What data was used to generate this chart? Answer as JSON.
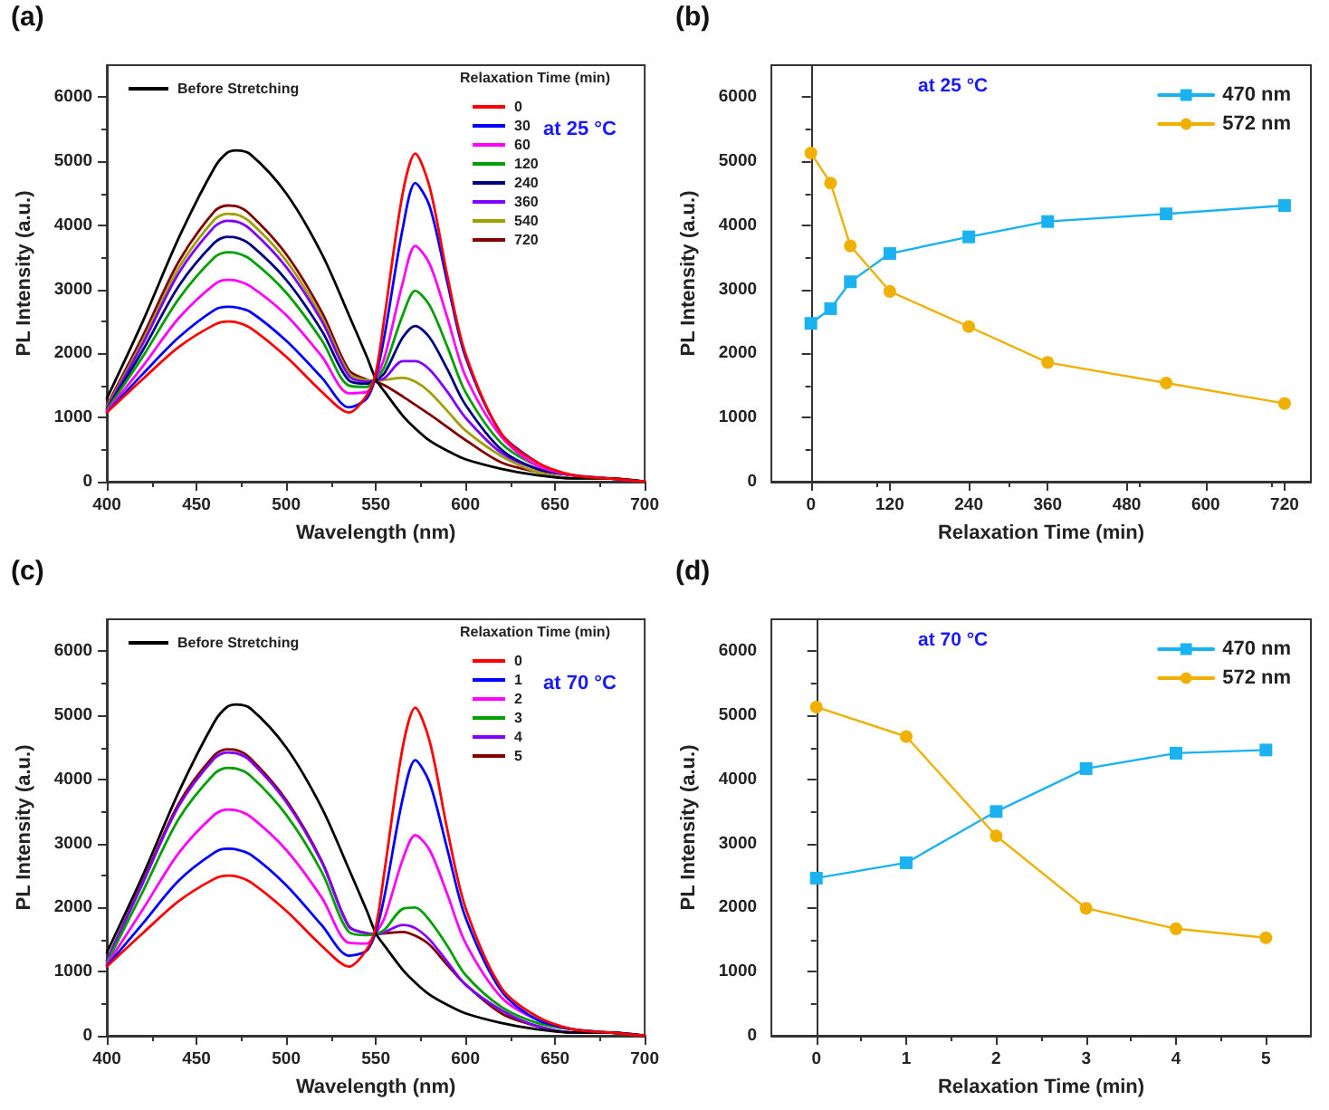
{
  "chart_data": [
    {
      "type": "line",
      "title": "(a)",
      "xlabel": "Wavelength (nm)",
      "ylabel": "PL Intensity (a.u.)",
      "legend_title": "Relaxation Time (min)",
      "annotations": [
        "at 25 °C"
      ],
      "marker": "none",
      "legend": "top",
      "xlim": [
        400,
        700
      ],
      "xticks": [
        400,
        450,
        500,
        550,
        600,
        650,
        700
      ],
      "ylim": [
        0,
        6500
      ],
      "yticks": [
        0,
        1000,
        2000,
        3000,
        4000,
        5000,
        6000
      ],
      "x": [
        400,
        420,
        440,
        460,
        467,
        472,
        480,
        500,
        520,
        535,
        545,
        550,
        555,
        565,
        572,
        580,
        590,
        600,
        620,
        640,
        660,
        680,
        700
      ],
      "series": [
        {
          "name": "Before Stretching",
          "color": "#000000",
          "values": [
            1300,
            2500,
            3800,
            4900,
            5130,
            5170,
            5110,
            4500,
            3550,
            2600,
            1950,
            1600,
            1400,
            1030,
            830,
            640,
            480,
            350,
            200,
            100,
            50,
            50,
            0
          ]
        },
        {
          "name": "0",
          "color": "#ff0000",
          "values": [
            1080,
            1600,
            2100,
            2450,
            2500,
            2490,
            2400,
            1950,
            1400,
            1080,
            1350,
            1700,
            2600,
            4500,
            5120,
            4600,
            3200,
            2000,
            750,
            300,
            100,
            50,
            0
          ]
        },
        {
          "name": "30",
          "color": "#0000ff",
          "values": [
            1080,
            1680,
            2250,
            2680,
            2730,
            2720,
            2650,
            2200,
            1620,
            1160,
            1300,
            1650,
            2300,
            3950,
            4660,
            4300,
            3100,
            1950,
            750,
            300,
            null,
            null,
            null
          ]
        },
        {
          "name": "60",
          "color": "#ff00ff",
          "values": [
            1100,
            1800,
            2550,
            3080,
            3150,
            3140,
            3050,
            2600,
            1950,
            1380,
            1400,
            1620,
            1950,
            3100,
            3680,
            3400,
            2550,
            1650,
            700,
            250,
            100,
            50,
            0
          ]
        },
        {
          "name": "120",
          "color": "#00a000",
          "values": [
            1120,
            1950,
            2850,
            3500,
            3580,
            3570,
            3470,
            2950,
            2200,
            1500,
            1480,
            1600,
            1800,
            2600,
            2980,
            2750,
            2100,
            1400,
            600,
            250,
            100,
            null,
            null
          ]
        },
        {
          "name": "240",
          "color": "#000080",
          "values": [
            1130,
            2050,
            3050,
            3730,
            3820,
            3810,
            3700,
            3150,
            2350,
            1580,
            1530,
            1590,
            1700,
            2250,
            2430,
            2250,
            1750,
            1200,
            500,
            200,
            100,
            50,
            0
          ]
        },
        {
          "name": "360",
          "color": "#8000ff",
          "values": [
            1150,
            2150,
            3250,
            3980,
            4070,
            4060,
            3940,
            3350,
            2500,
            1650,
            1560,
            1580,
            1620,
            1880,
            1880,
            1750,
            1400,
            1000,
            450,
            200,
            100,
            null,
            null
          ]
        },
        {
          "name": "540",
          "color": "#a0a000",
          "values": [
            1170,
            2200,
            3330,
            4090,
            4180,
            4170,
            4050,
            3450,
            2560,
            1690,
            1580,
            1570,
            1590,
            1620,
            1560,
            1400,
            1100,
            800,
            400,
            150,
            50,
            50,
            0
          ]
        },
        {
          "name": "720",
          "color": "#800000",
          "values": [
            1190,
            2270,
            3430,
            4220,
            4310,
            4300,
            4170,
            3550,
            2640,
            1740,
            1590,
            1560,
            1500,
            1330,
            1200,
            1050,
            850,
            650,
            300,
            150,
            50,
            50,
            0
          ]
        }
      ]
    },
    {
      "type": "line",
      "title": "(b)",
      "xlabel": "Relaxation Time (min)",
      "ylabel": "PL Intensity (a.u.)",
      "annotations": [
        "at 25 °C"
      ],
      "legend": "top right",
      "xlim": [
        -60,
        760
      ],
      "xticks": [
        0,
        120,
        240,
        360,
        480,
        600,
        720
      ],
      "ylim": [
        0,
        6500
      ],
      "yticks": [
        0,
        1000,
        2000,
        3000,
        4000,
        5000,
        6000
      ],
      "x": [
        0,
        30,
        60,
        120,
        240,
        360,
        540,
        720
      ],
      "series": [
        {
          "name": "470 nm",
          "color": "#1ab2f0",
          "marker": "square",
          "values": [
            2470,
            2700,
            3120,
            3560,
            3820,
            4060,
            4180,
            4310
          ]
        },
        {
          "name": "572 nm",
          "color": "#f0b000",
          "marker": "circle",
          "values": [
            5130,
            4660,
            3680,
            2970,
            2420,
            1860,
            1540,
            1220
          ]
        }
      ]
    },
    {
      "type": "line",
      "title": "(c)",
      "xlabel": "Wavelength (nm)",
      "ylabel": "PL Intensity (a.u.)",
      "legend_title": "Relaxation Time (min)",
      "annotations": [
        "at 70 °C"
      ],
      "marker": "none",
      "legend": "top",
      "xlim": [
        400,
        700
      ],
      "xticks": [
        400,
        450,
        500,
        550,
        600,
        650,
        700
      ],
      "ylim": [
        0,
        6500
      ],
      "yticks": [
        0,
        1000,
        2000,
        3000,
        4000,
        5000,
        6000
      ],
      "x": [
        400,
        420,
        440,
        460,
        467,
        472,
        480,
        500,
        520,
        535,
        545,
        550,
        555,
        565,
        572,
        580,
        590,
        600,
        620,
        640,
        660,
        680,
        700
      ],
      "series": [
        {
          "name": "Before Stretching",
          "color": "#000000",
          "values": [
            1300,
            2500,
            3800,
            4900,
            5130,
            5170,
            5110,
            4500,
            3550,
            2600,
            1950,
            1600,
            1400,
            1030,
            830,
            640,
            480,
            350,
            200,
            100,
            50,
            50,
            0
          ]
        },
        {
          "name": "0",
          "color": "#ff0000",
          "values": [
            1080,
            1600,
            2100,
            2450,
            2500,
            2490,
            2400,
            1950,
            1400,
            1080,
            1350,
            1700,
            2600,
            4500,
            5120,
            4600,
            3200,
            2000,
            750,
            300,
            100,
            50,
            0
          ]
        },
        {
          "name": "1",
          "color": "#0000ff",
          "values": [
            1090,
            1750,
            2420,
            2860,
            2920,
            2910,
            2830,
            2350,
            1720,
            1250,
            1330,
            1620,
            2200,
            3700,
            4300,
            3950,
            2900,
            1850,
            700,
            250,
            100,
            50,
            0
          ]
        },
        {
          "name": "2",
          "color": "#ff00ff",
          "values": [
            1110,
            1970,
            2850,
            3450,
            3530,
            3520,
            3420,
            2900,
            2150,
            1450,
            1440,
            1600,
            1850,
            2750,
            3130,
            2900,
            2200,
            1450,
            600,
            250,
            100,
            null,
            null
          ]
        },
        {
          "name": "3",
          "color": "#00a000",
          "values": [
            1140,
            2250,
            3380,
            4090,
            4180,
            4170,
            4060,
            3450,
            2550,
            1620,
            1570,
            1590,
            1660,
            1980,
            2000,
            1800,
            1400,
            950,
            450,
            200,
            100,
            50,
            0
          ]
        },
        {
          "name": "4",
          "color": "#8000ff",
          "values": [
            1170,
            2380,
            3580,
            4330,
            4420,
            4410,
            4290,
            3650,
            2700,
            1700,
            1600,
            1590,
            1620,
            1730,
            1680,
            1500,
            1150,
            800,
            400,
            150,
            50,
            50,
            0
          ]
        },
        {
          "name": "5",
          "color": "#800000",
          "values": [
            1180,
            2400,
            3620,
            4380,
            4470,
            4460,
            4330,
            3680,
            2720,
            1710,
            1600,
            1590,
            1600,
            1620,
            1560,
            1420,
            1100,
            800,
            350,
            150,
            50,
            50,
            0
          ]
        }
      ]
    },
    {
      "type": "line",
      "title": "(d)",
      "xlabel": "Relaxation Time (min)",
      "ylabel": "PL Intensity (a.u.)",
      "annotations": [
        "at 70 °C"
      ],
      "legend": "top right",
      "xlim": [
        -0.5,
        5.5
      ],
      "xticks": [
        0,
        1,
        2,
        3,
        4,
        5
      ],
      "ylim": [
        0,
        6500
      ],
      "yticks": [
        0,
        1000,
        2000,
        3000,
        4000,
        5000,
        6000
      ],
      "x": [
        0,
        1,
        2,
        3,
        4,
        5
      ],
      "series": [
        {
          "name": "470 nm",
          "color": "#1ab2f0",
          "marker": "square",
          "values": [
            2460,
            2700,
            3500,
            4170,
            4410,
            4460
          ]
        },
        {
          "name": "572 nm",
          "color": "#f0b000",
          "marker": "circle",
          "values": [
            5130,
            4670,
            3120,
            1990,
            1670,
            1530
          ]
        }
      ]
    }
  ]
}
